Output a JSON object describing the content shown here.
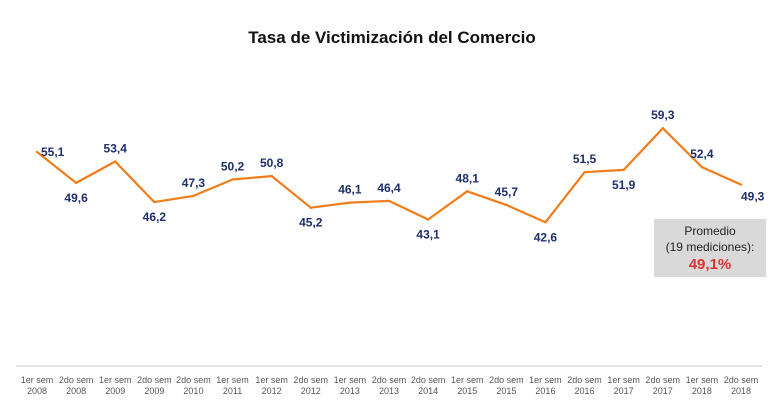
{
  "chart_data": {
    "type": "line",
    "title": "Tasa de Victimización del Comercio",
    "categories": [
      [
        "1er sem",
        "2008"
      ],
      [
        "2do sem",
        "2008"
      ],
      [
        "1er sem",
        "2009"
      ],
      [
        "2do sem",
        "2009"
      ],
      [
        "2do sem",
        "2010"
      ],
      [
        "1er sem",
        "2011"
      ],
      [
        "1er sem",
        "2012"
      ],
      [
        "2do sem",
        "2012"
      ],
      [
        "1er sem",
        "2013"
      ],
      [
        "2do sem",
        "2013"
      ],
      [
        "2do sem",
        "2014"
      ],
      [
        "1er sem",
        "2015"
      ],
      [
        "2do sem",
        "2015"
      ],
      [
        "1er sem",
        "2016"
      ],
      [
        "2do sem",
        "2016"
      ],
      [
        "1er sem",
        "2017"
      ],
      [
        "2do sem",
        "2017"
      ],
      [
        "1er sem",
        "2018"
      ],
      [
        "2do sem",
        "2018"
      ]
    ],
    "series": [
      {
        "name": "Tasa de Victimización",
        "values": [
          55.1,
          49.6,
          53.4,
          46.2,
          47.3,
          50.2,
          50.8,
          45.2,
          46.1,
          46.4,
          43.1,
          48.1,
          45.7,
          42.6,
          51.5,
          51.9,
          59.3,
          52.4,
          49.3
        ]
      }
    ],
    "labels": [
      "55,1",
      "49,6",
      "53,4",
      "46,2",
      "47,3",
      "50,2",
      "50,8",
      "45,2",
      "46,1",
      "46,4",
      "43,1",
      "48,1",
      "45,7",
      "42,6",
      "51,5",
      "51,9",
      "59,3",
      "52,4",
      "49,3"
    ],
    "label_positions": [
      "right",
      "below",
      "above",
      "below",
      "above",
      "above",
      "above",
      "below",
      "above",
      "above",
      "below",
      "above",
      "above",
      "below",
      "above",
      "below",
      "above",
      "above",
      "below-right"
    ],
    "ylim": [
      40,
      62
    ],
    "grid": false,
    "xlabel": "",
    "ylabel": ""
  },
  "average_box": {
    "line1": "Promedio",
    "line2": "(19 mediciones):",
    "value": "49,1%"
  },
  "colors": {
    "line": "#f07d1a",
    "label": "#1f2f6e",
    "tick": "#555555",
    "axis": "#c8c8c8",
    "average_value": "#e03030"
  }
}
